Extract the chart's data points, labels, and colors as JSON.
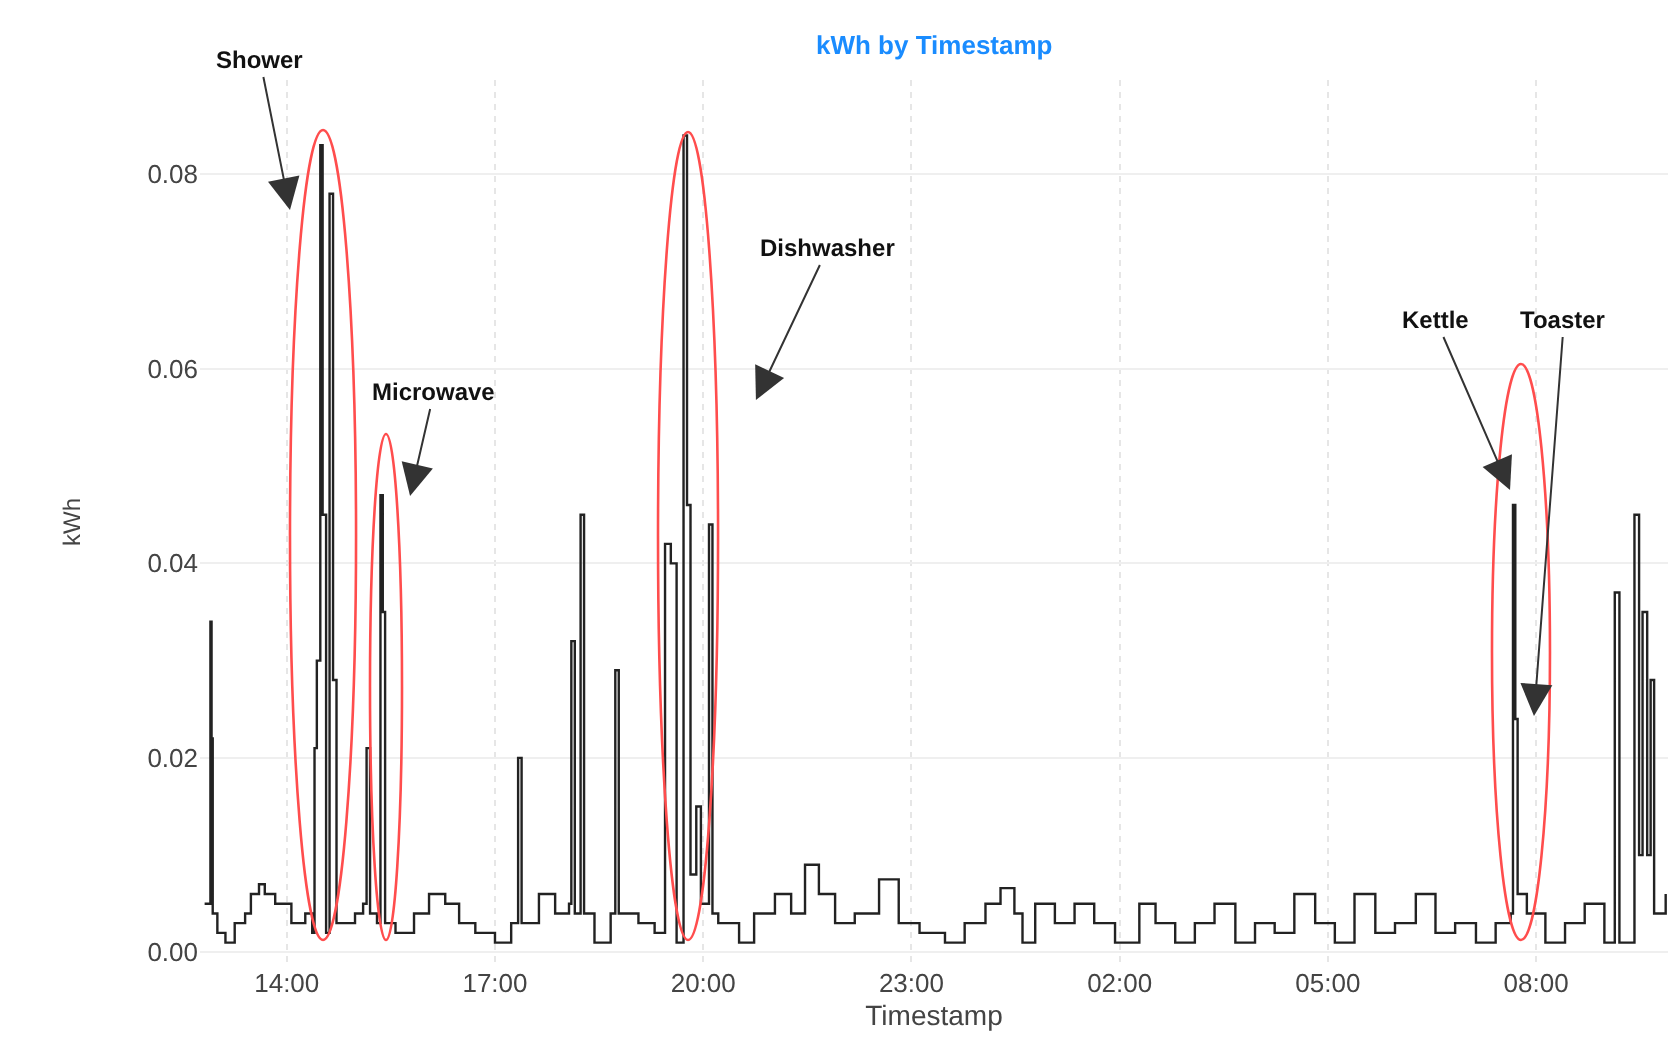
{
  "chart_data": {
    "type": "step",
    "title": "kWh by Timestamp",
    "xlabel": "Timestamp",
    "ylabel": "kWh",
    "x": [
      "--01-01T12:49",
      "--01-01T12:53",
      "--01-01T12:54",
      "--01-01T12:55",
      "--01-01T12:56",
      "--01-01T13:00",
      "--01-01T13:07",
      "--01-01T13:15",
      "--01-01T13:24",
      "--01-01T13:29",
      "--01-01T13:36",
      "--01-01T13:41",
      "--01-01T13:50",
      "--01-01T14:04",
      "--01-01T14:16",
      "--01-01T14:22",
      "--01-01T14:24",
      "--01-01T14:26",
      "--01-01T14:29",
      "--01-01T14:31",
      "--01-01T14:34",
      "--01-01T14:37",
      "--01-01T14:40",
      "--01-01T14:43",
      "--01-01T14:59",
      "--01-01T15:06",
      "--01-01T15:09",
      "--01-01T15:12",
      "--01-01T15:18",
      "--01-01T15:21",
      "--01-01T15:23",
      "--01-01T15:25",
      "--01-01T15:34",
      "--01-01T15:50",
      "--01-01T16:03",
      "--01-01T16:17",
      "--01-01T16:29",
      "--01-01T16:43",
      "--01-01T17:00",
      "--01-01T17:14",
      "--01-01T17:20",
      "--01-01T17:23",
      "--01-01T17:38",
      "--01-01T17:52",
      "--01-01T18:04",
      "--01-01T18:06",
      "--01-01T18:09",
      "--01-01T18:14",
      "--01-01T18:17",
      "--01-01T18:26",
      "--01-01T18:40",
      "--01-01T18:44",
      "--01-01T18:47",
      "--01-01T19:04",
      "--01-01T19:18",
      "--01-01T19:27",
      "--01-01T19:32",
      "--01-01T19:37",
      "--01-01T19:43",
      "--01-01T19:46",
      "--01-01T19:49",
      "--01-01T19:54",
      "--01-01T19:58",
      "--01-01T20:05",
      "--01-01T20:08",
      "--01-01T20:13",
      "--01-01T20:31",
      "--01-01T20:44",
      "--01-01T21:02",
      "--01-01T21:16",
      "--01-01T21:28",
      "--01-01T21:40",
      "--01-01T21:54",
      "--01-01T22:11",
      "--01-01T22:32",
      "--01-01T22:49",
      "--01-01T23:07",
      "--01-01T23:29",
      "--01-01T23:46",
      "--01-02T00:04",
      "--01-02T00:17",
      "--01-02T00:29",
      "--01-02T00:36",
      "--01-02T00:47",
      "--01-02T01:04",
      "--01-02T01:21",
      "--01-02T01:38",
      "--01-02T01:56",
      "--01-02T02:17",
      "--01-02T02:31",
      "--01-02T02:48",
      "--01-02T03:05",
      "--01-02T03:22",
      "--01-02T03:40",
      "--01-02T03:57",
      "--01-02T04:14",
      "--01-02T04:31",
      "--01-02T04:49",
      "--01-02T05:06",
      "--01-02T05:23",
      "--01-02T05:41",
      "--01-02T05:58",
      "--01-02T06:16",
      "--01-02T06:33",
      "--01-02T06:50",
      "--01-02T07:08",
      "--01-02T07:25",
      "--01-02T07:38",
      "--01-02T07:40",
      "--01-02T07:42",
      "--01-02T07:44",
      "--01-02T07:52",
      "--01-02T08:08",
      "--01-02T08:25",
      "--01-02T08:42",
      "--01-02T08:59",
      "--01-02T09:08",
      "--01-02T09:12",
      "--01-02T09:25",
      "--01-02T09:29",
      "--01-02T09:32",
      "--01-02T09:36",
      "--01-02T09:39",
      "--01-02T09:42",
      "--01-02T09:52"
    ],
    "series": [
      {
        "color": "#222222",
        "values": [
          0.005,
          0.005,
          0.034,
          0.022,
          0.004,
          0.002,
          0.001,
          0.003,
          0.004,
          0.006,
          0.007,
          0.006,
          0.005,
          0.003,
          0.004,
          0.002,
          0.021,
          0.03,
          0.083,
          0.045,
          0.002,
          0.078,
          0.028,
          0.003,
          0.004,
          0.005,
          0.021,
          0.004,
          0.003,
          0.047,
          0.035,
          0.003,
          0.002,
          0.004,
          0.006,
          0.005,
          0.003,
          0.002,
          0.001,
          0.003,
          0.02,
          0.003,
          0.006,
          0.004,
          0.005,
          0.032,
          0.004,
          0.045,
          0.004,
          0.001,
          0.004,
          0.029,
          0.004,
          0.003,
          0.002,
          0.042,
          0.04,
          0.001,
          0.084,
          0.046,
          0.008,
          0.015,
          0.005,
          0.044,
          0.004,
          0.003,
          0.001,
          0.004,
          0.006,
          0.004,
          0.009,
          0.006,
          0.003,
          0.004,
          0.0075,
          0.003,
          0.002,
          0.001,
          0.003,
          0.005,
          0.0066,
          0.004,
          0.001,
          0.005,
          0.003,
          0.005,
          0.003,
          0.001,
          0.005,
          0.003,
          0.001,
          0.003,
          0.005,
          0.001,
          0.003,
          0.002,
          0.006,
          0.003,
          0.001,
          0.006,
          0.002,
          0.003,
          0.006,
          0.002,
          0.003,
          0.001,
          0.003,
          0.004,
          0.046,
          0.024,
          0.006,
          0.004,
          0.001,
          0.003,
          0.005,
          0.001,
          0.037,
          0.001,
          0.045,
          0.01,
          0.035,
          0.01,
          0.028,
          0.004,
          0.006
        ]
      }
    ],
    "xlim": [
      "--01-01T12:45",
      "--01-02T09:54"
    ],
    "xticks": [
      {
        "value": "--01-01T14:00",
        "label": "14:00"
      },
      {
        "value": "--01-01T17:00",
        "label": "17:00"
      },
      {
        "value": "--01-01T20:00",
        "label": "20:00"
      },
      {
        "value": "--01-01T23:00",
        "label": "23:00"
      },
      {
        "value": "--01-02T02:00",
        "label": "02:00"
      },
      {
        "value": "--01-02T05:00",
        "label": "05:00"
      },
      {
        "value": "--01-02T08:00",
        "label": "08:00"
      }
    ],
    "ylim": [
      -0.0012,
      0.0897
    ],
    "yticks": [
      {
        "value": 0,
        "label": "0.00"
      },
      {
        "value": 0.02,
        "label": "0.02"
      },
      {
        "value": 0.04,
        "label": "0.04"
      },
      {
        "value": 0.06,
        "label": "0.06"
      },
      {
        "value": 0.08,
        "label": "0.08"
      }
    ],
    "annotations": [
      "Shower",
      "Microwave",
      "Dishwasher",
      "Kettle",
      "Toaster"
    ],
    "grid": true
  }
}
